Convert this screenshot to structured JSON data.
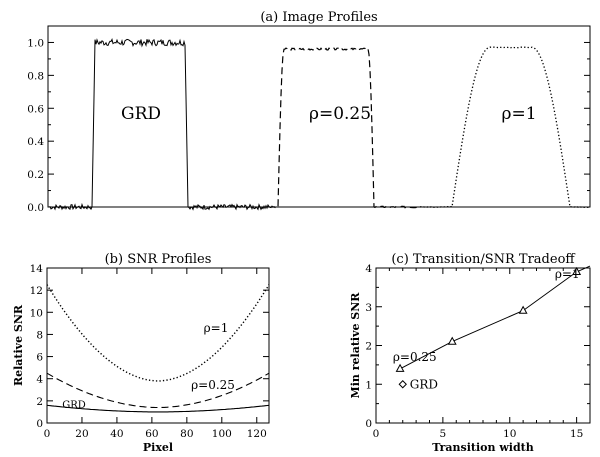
{
  "chart_data": [
    {
      "id": "a",
      "type": "line",
      "title": "(a) Image Profiles",
      "ylim": [
        0,
        1.1
      ],
      "yticks": [
        0.0,
        0.2,
        0.4,
        0.6,
        0.8,
        1.0
      ],
      "ytick_labels": [
        "0.0",
        "0.2",
        "0.4",
        "0.6",
        "0.8",
        "1.0"
      ],
      "series": [
        {
          "style": "solid",
          "level": 1.0,
          "baseline": 0.0
        },
        {
          "style": "dashed",
          "level": 0.96,
          "baseline": 0.0
        },
        {
          "style": "dotted",
          "level": 0.97,
          "baseline": 0.0
        }
      ],
      "annotations": [
        "GRD",
        "ρ=0.25",
        "ρ=1"
      ]
    },
    {
      "id": "b",
      "type": "line",
      "title": "(b) SNR Profiles",
      "xlabel": "Pixel",
      "ylabel": "Relative SNR",
      "xlim": [
        0,
        127
      ],
      "ylim": [
        0,
        14
      ],
      "xticks": [
        0,
        20,
        40,
        60,
        80,
        100,
        120
      ],
      "xtick_labels": [
        "0",
        "20",
        "40",
        "60",
        "80",
        "100",
        "120"
      ],
      "yticks": [
        0,
        2,
        4,
        6,
        8,
        10,
        12,
        14
      ],
      "ytick_labels": [
        "0",
        "2",
        "4",
        "6",
        "8",
        "10",
        "12",
        "14"
      ],
      "series": [
        {
          "style": "dotted",
          "label": "ρ=1",
          "edge": 12.5,
          "center": 3.8,
          "center_x": 63.5
        },
        {
          "style": "dashed",
          "label": "ρ=0.25",
          "edge": 4.5,
          "center": 1.4,
          "center_x": 63.5
        },
        {
          "style": "solid",
          "label": "GRD",
          "edge": 1.6,
          "center": 1.0,
          "center_x": 63.5
        }
      ]
    },
    {
      "id": "c",
      "type": "line",
      "title": "(c) Transition/SNR Tradeoff",
      "xlabel": "Transition width",
      "ylabel": "Min relative SNR",
      "xlim": [
        0,
        16
      ],
      "ylim": [
        0,
        4
      ],
      "xticks": [
        0,
        5,
        10,
        15
      ],
      "xtick_labels": [
        "0",
        "5",
        "10",
        "15"
      ],
      "yticks": [
        0,
        1,
        2,
        3,
        4
      ],
      "ytick_labels": [
        "0",
        "1",
        "2",
        "3",
        "4"
      ],
      "series": [
        {
          "marker": "triangle",
          "x": [
            1.8,
            5.7,
            11.0,
            15.0
          ],
          "y": [
            1.4,
            2.1,
            2.9,
            3.9
          ]
        }
      ],
      "points": [
        {
          "marker": "diamond",
          "label": "GRD",
          "x": 2.0,
          "y": 1.0
        }
      ],
      "annotations": [
        {
          "text": "ρ=0.25",
          "x": 2.0,
          "y": 1.55
        },
        {
          "text": "ρ=1",
          "x": 14.0,
          "y": 3.95
        }
      ]
    }
  ]
}
